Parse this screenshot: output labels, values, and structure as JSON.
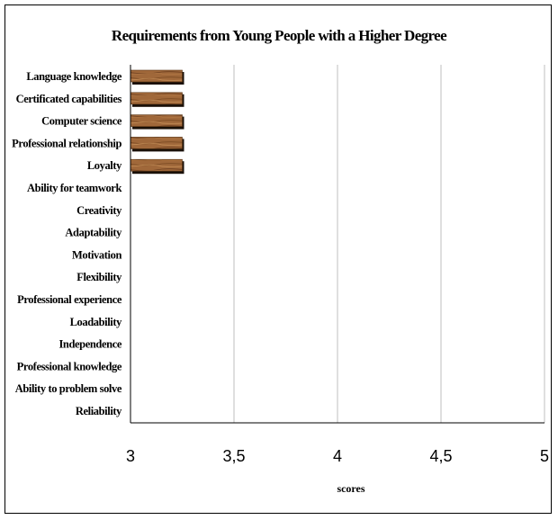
{
  "chart_data": {
    "type": "bar",
    "orientation": "horizontal",
    "title": "Requirements from Young People with a Higher Degree",
    "xlabel": "scores",
    "ylabel": "",
    "xlim": [
      3,
      5
    ],
    "x_ticks": [
      "3",
      "3,5",
      "4",
      "4,5",
      "5"
    ],
    "x_tick_values": [
      3,
      3.5,
      4,
      4.5,
      5
    ],
    "grid": "vertical",
    "bar_fill": "wood-texture",
    "colors": {
      "bar": "#a0683a",
      "bar_shadow": "#1a1008",
      "gridline": "#bfbfbf",
      "axis": "#000000"
    },
    "categories": [
      "Language knowledge",
      "Certificated capabilities",
      "Computer science",
      "Professional relationship",
      "Loyalty",
      "Ability for teamwork",
      "Creativity",
      "Adaptability",
      "Motivation",
      "Flexibility",
      "Professional experience",
      "Loadability",
      "Independence",
      "Professional knowledge",
      "Ability to problem solve",
      "Reliability"
    ],
    "values": [
      3.25,
      3.25,
      3.25,
      3.25,
      3.25,
      null,
      null,
      null,
      null,
      null,
      null,
      null,
      null,
      null,
      null,
      null
    ]
  }
}
